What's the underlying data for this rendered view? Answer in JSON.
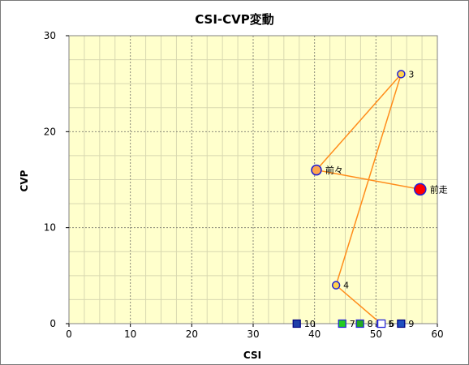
{
  "chart_data": {
    "type": "scatter",
    "title": "CSI-CVP変動",
    "xlabel": "CSI",
    "ylabel": "CVP",
    "xlim": [
      0,
      60
    ],
    "ylim": [
      0,
      30
    ],
    "x_ticks": [
      0,
      10,
      20,
      30,
      40,
      50,
      60
    ],
    "y_ticks": [
      0,
      10,
      20,
      30
    ],
    "grid": true,
    "background_color": "#ffffcc",
    "line_color": "#ff8c1a",
    "series": [
      {
        "connected": true,
        "points": [
          {
            "label": "前走",
            "x": 57.2,
            "y": 14,
            "marker": "circle-large",
            "fill": "#ff0000",
            "stroke": "#1f1fd6"
          },
          {
            "label": "前々",
            "x": 40.3,
            "y": 16,
            "marker": "circle-medium",
            "fill": "#ffa64d",
            "stroke": "#1f1fd6"
          },
          {
            "label": "3",
            "x": 54.1,
            "y": 26,
            "marker": "circle-small",
            "fill": "#ffd24d",
            "stroke": "#1f1fd6"
          },
          {
            "label": "4",
            "x": 43.5,
            "y": 4,
            "marker": "circle-small",
            "fill": "#ffd24d",
            "stroke": "#1f1fd6"
          },
          {
            "label": "5",
            "x": 50.8,
            "y": 0,
            "marker": "square",
            "fill": "#ffffff",
            "stroke": "#1f1fd6"
          }
        ]
      },
      {
        "connected": false,
        "points": [
          {
            "label": "6",
            "x": 50.9,
            "y": 0,
            "marker": "square",
            "fill": "#ffffff",
            "stroke": "#1f1fd6"
          },
          {
            "label": "7",
            "x": 44.5,
            "y": 0,
            "marker": "square",
            "fill": "#22cc22",
            "stroke": "#1f1fd6"
          },
          {
            "label": "8",
            "x": 47.4,
            "y": 0,
            "marker": "square",
            "fill": "#22aa22",
            "stroke": "#1f1fd6"
          },
          {
            "label": "9",
            "x": 54.1,
            "y": 0,
            "marker": "square",
            "fill": "#1f4fbf",
            "stroke": "#000080"
          },
          {
            "label": "10",
            "x": 37.1,
            "y": 0,
            "marker": "square",
            "fill": "#1f3fa8",
            "stroke": "#000080"
          }
        ]
      }
    ]
  }
}
